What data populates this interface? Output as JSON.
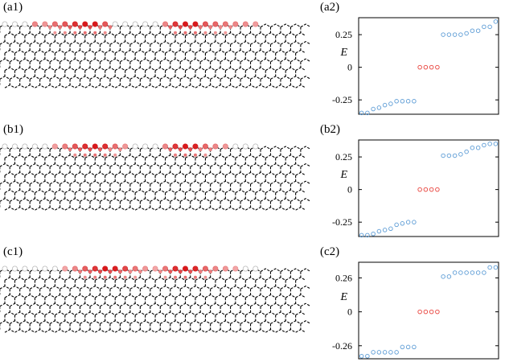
{
  "panel_labels": {
    "a1": "(a1)",
    "a2": "(a2)",
    "b1": "(b1)",
    "b2": "(b2)",
    "c1": "(c1)",
    "c2": "(c2)"
  },
  "colors": {
    "edge_state_marker": "#e8403a",
    "bulk_state_marker": "#5b9bd5",
    "lattice_bond": "#000000",
    "site_highlight_strong": "#d7191c",
    "site_highlight_weak": "#f4b6b6"
  },
  "lattice_maps": [
    {
      "panel": "a1",
      "top_row_intensity": [
        0.0,
        0.0,
        0.0,
        0.3,
        0.2,
        0.45,
        0.6,
        0.85,
        1.0,
        1.0,
        0.6,
        0.0,
        0.0,
        0.0,
        0.0,
        0.0,
        0.3,
        0.8,
        1.0,
        1.0,
        0.6,
        0.5,
        0.4,
        0.3,
        0.25,
        0.15
      ]
    },
    {
      "panel": "b1",
      "top_row_intensity": [
        0.0,
        0.0,
        0.0,
        0.0,
        0.0,
        0.15,
        0.35,
        0.6,
        0.85,
        1.0,
        0.85,
        0.45,
        0.2,
        0.0,
        0.0,
        0.0,
        0.3,
        0.8,
        1.0,
        0.95,
        0.5,
        0.3,
        0.2,
        0.0,
        0.0,
        0.0
      ]
    },
    {
      "panel": "c1",
      "top_row_intensity": [
        0.0,
        0.0,
        0.0,
        0.0,
        0.0,
        0.0,
        0.1,
        0.3,
        0.55,
        0.8,
        1.0,
        0.95,
        0.7,
        0.4,
        0.2,
        0.1,
        0.4,
        0.85,
        1.0,
        0.9,
        0.5,
        0.3,
        0.2,
        0.1,
        0.0,
        0.0
      ]
    }
  ],
  "chart_data": [
    {
      "panel": "a2",
      "type": "scatter",
      "ylabel": "E",
      "yticks": [
        0.25,
        0,
        -0.25
      ],
      "ytick_labels": [
        "0.25",
        "0",
        "-0.25"
      ],
      "ylim": [
        -0.36,
        0.38
      ],
      "xlim": [
        0.5,
        24.5
      ],
      "series": [
        {
          "role": "bulk-low",
          "x": [
            1,
            2,
            3,
            4,
            5,
            6,
            7,
            8,
            9,
            10
          ],
          "y": [
            -0.35,
            -0.35,
            -0.32,
            -0.31,
            -0.29,
            -0.28,
            -0.26,
            -0.26,
            -0.26,
            -0.26
          ]
        },
        {
          "role": "edge",
          "x": [
            11,
            12,
            13,
            14
          ],
          "y": [
            0.0,
            0.0,
            0.0,
            0.0
          ]
        },
        {
          "role": "bulk-high",
          "x": [
            15,
            16,
            17,
            18,
            19,
            20,
            21,
            22,
            23,
            24
          ],
          "y": [
            0.25,
            0.25,
            0.25,
            0.25,
            0.26,
            0.28,
            0.28,
            0.31,
            0.31,
            0.35
          ]
        }
      ]
    },
    {
      "panel": "b2",
      "type": "scatter",
      "ylabel": "E",
      "yticks": [
        0.25,
        0,
        -0.25
      ],
      "ytick_labels": [
        "0.25",
        "0",
        "-0.25"
      ],
      "ylim": [
        -0.36,
        0.38
      ],
      "xlim": [
        0.5,
        24.5
      ],
      "series": [
        {
          "role": "bulk-low",
          "x": [
            1,
            2,
            3,
            4,
            5,
            6,
            7,
            8,
            9,
            10
          ],
          "y": [
            -0.35,
            -0.35,
            -0.34,
            -0.32,
            -0.31,
            -0.3,
            -0.27,
            -0.26,
            -0.25,
            -0.25
          ]
        },
        {
          "role": "edge",
          "x": [
            11,
            12,
            13,
            14
          ],
          "y": [
            0.0,
            0.0,
            0.0,
            0.0
          ]
        },
        {
          "role": "bulk-high",
          "x": [
            15,
            16,
            17,
            18,
            19,
            20,
            21,
            22,
            23,
            24
          ],
          "y": [
            0.26,
            0.26,
            0.26,
            0.27,
            0.29,
            0.32,
            0.32,
            0.34,
            0.35,
            0.35
          ]
        }
      ]
    },
    {
      "panel": "c2",
      "type": "scatter",
      "ylabel": "E",
      "yticks": [
        0.26,
        0,
        -0.26
      ],
      "ytick_labels": [
        "0.26",
        "0",
        "-0.26"
      ],
      "ylim": [
        -0.36,
        0.38
      ],
      "xlim": [
        0.5,
        24.5
      ],
      "series": [
        {
          "role": "bulk-low",
          "x": [
            1,
            2,
            3,
            4,
            5,
            6,
            7,
            8,
            9,
            10
          ],
          "y": [
            -0.34,
            -0.34,
            -0.31,
            -0.31,
            -0.31,
            -0.31,
            -0.31,
            -0.27,
            -0.27,
            -0.27
          ]
        },
        {
          "role": "edge",
          "x": [
            11,
            12,
            13,
            14
          ],
          "y": [
            0.0,
            0.0,
            0.0,
            0.0
          ]
        },
        {
          "role": "bulk-high",
          "x": [
            15,
            16,
            17,
            18,
            19,
            20,
            21,
            22,
            23,
            24
          ],
          "y": [
            0.27,
            0.27,
            0.3,
            0.3,
            0.3,
            0.3,
            0.3,
            0.3,
            0.34,
            0.34
          ]
        }
      ]
    }
  ]
}
